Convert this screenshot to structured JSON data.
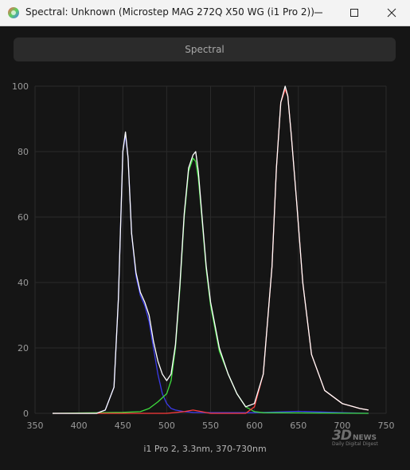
{
  "window": {
    "title": "Spectral: Unknown (Microstep MAG 272Q X50 WG (i1 Pro 2))"
  },
  "tabs": {
    "spectral_label": "Spectral"
  },
  "caption": "i1 Pro 2, 3.3nm, 370-730nm",
  "watermark": {
    "logo": "3D",
    "news": "NEWS",
    "tagline": "Daily Digital Digest"
  },
  "colors": {
    "background": "#151515",
    "grid": "#2a2a2a",
    "blue": "#3a3ae8",
    "green": "#3ddc3d",
    "red": "#ff3b3b",
    "white": "#ffffff"
  },
  "chart_data": {
    "type": "line",
    "xlabel": "",
    "ylabel": "",
    "xlim": [
      350,
      750
    ],
    "ylim": [
      0,
      100
    ],
    "xticks": [
      350,
      400,
      450,
      500,
      550,
      600,
      650,
      700,
      750
    ],
    "yticks": [
      0,
      20,
      40,
      60,
      80,
      100
    ],
    "grid": true,
    "series": [
      {
        "color": "#3a3ae8",
        "x": [
          370,
          420,
          430,
          440,
          445,
          450,
          453,
          456,
          460,
          465,
          470,
          475,
          480,
          485,
          490,
          495,
          500,
          505,
          510,
          520,
          530,
          550,
          600,
          650,
          700,
          730
        ],
        "y": [
          0,
          0,
          1,
          8,
          35,
          80,
          85,
          78,
          55,
          42,
          36,
          33,
          28,
          20,
          12,
          6,
          3,
          1.5,
          1,
          0.5,
          0.3,
          0.2,
          0.2,
          0.6,
          0.2,
          0
        ]
      },
      {
        "color": "#3ddc3d",
        "x": [
          370,
          450,
          470,
          480,
          490,
          500,
          505,
          510,
          515,
          520,
          525,
          530,
          533,
          536,
          540,
          545,
          550,
          555,
          560,
          570,
          580,
          590,
          600,
          610,
          730
        ],
        "y": [
          0,
          0.3,
          0.5,
          1.5,
          3.5,
          6,
          10,
          20,
          38,
          60,
          74,
          78,
          77,
          72,
          60,
          44,
          33,
          26,
          19,
          12,
          6,
          2,
          0.5,
          0.2,
          0
        ]
      },
      {
        "color": "#ff3b3b",
        "x": [
          370,
          500,
          520,
          530,
          540,
          550,
          590,
          600,
          610,
          620,
          625,
          630,
          635,
          638,
          642,
          648,
          655,
          665,
          680,
          700,
          720,
          730
        ],
        "y": [
          0,
          0,
          0.5,
          1,
          0.5,
          0,
          0,
          2,
          12,
          45,
          75,
          95,
          99,
          97,
          85,
          65,
          40,
          18,
          7,
          3,
          1.5,
          1
        ]
      },
      {
        "color": "#ffffff",
        "x": [
          370,
          420,
          430,
          440,
          445,
          450,
          453,
          456,
          460,
          465,
          470,
          475,
          480,
          485,
          490,
          495,
          500,
          505,
          510,
          515,
          520,
          525,
          530,
          533,
          536,
          540,
          545,
          550,
          555,
          560,
          570,
          580,
          590,
          600,
          610,
          620,
          625,
          630,
          635,
          638,
          642,
          648,
          655,
          665,
          680,
          700,
          720,
          730
        ],
        "y": [
          0,
          0,
          1,
          8,
          35,
          80,
          86,
          78,
          55,
          43,
          37,
          34,
          30,
          22,
          16,
          12,
          10,
          12,
          21,
          39,
          61,
          75,
          79,
          80,
          74,
          61,
          45,
          34,
          27,
          20,
          12,
          6,
          2,
          3,
          12,
          45,
          75,
          95,
          100,
          97,
          85,
          65,
          40,
          18,
          7,
          3,
          1.5,
          1
        ]
      }
    ]
  }
}
